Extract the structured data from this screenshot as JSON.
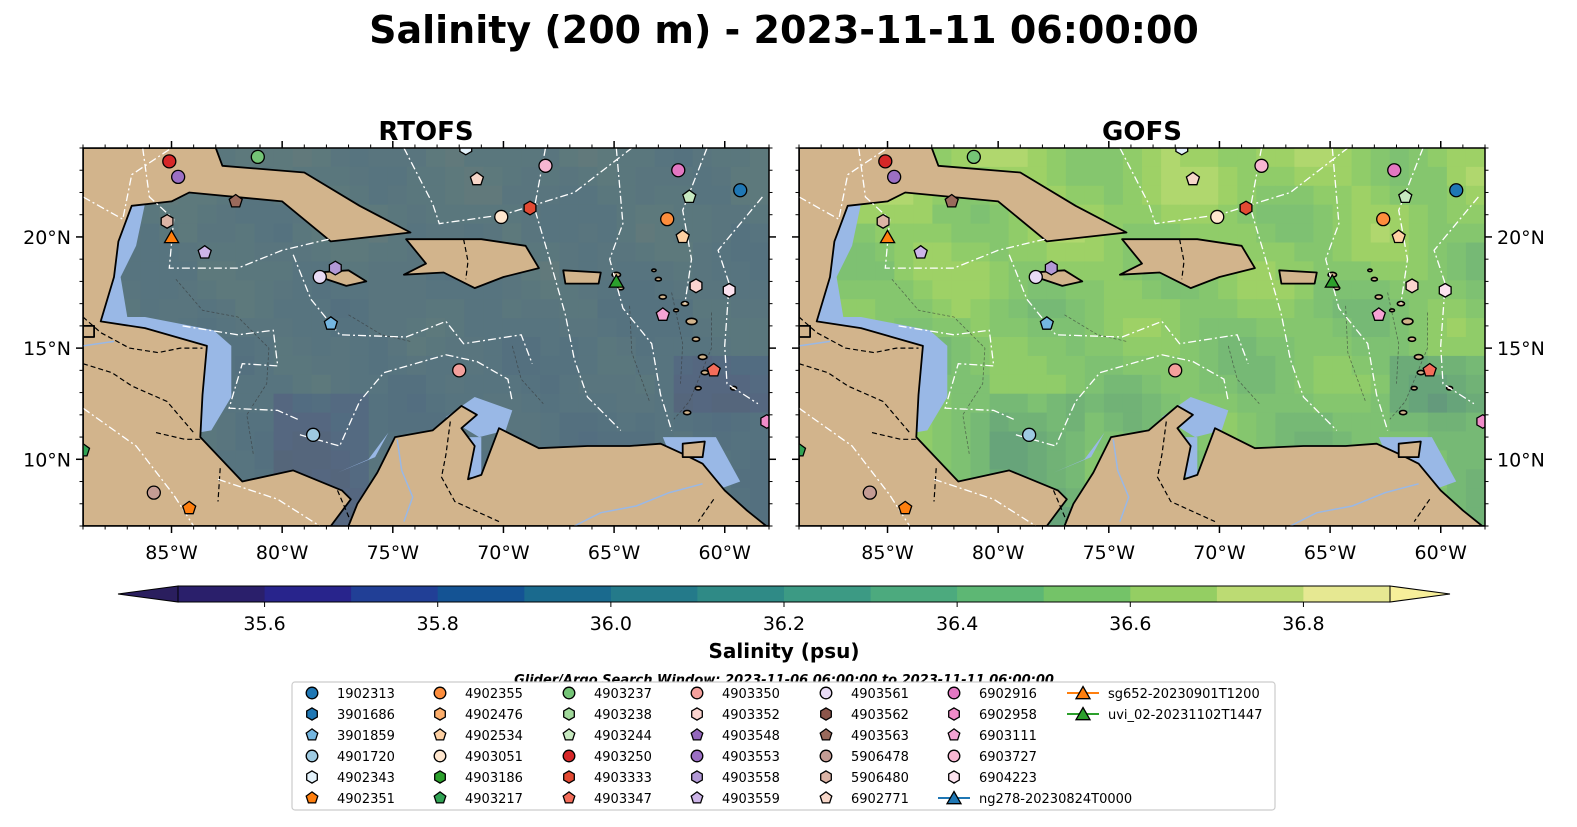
{
  "figure_title": "Salinity (200 m) - 2023-11-11 06:00:00",
  "panels": [
    {
      "title": "RTOFS",
      "ocean_style": "eddy"
    },
    {
      "title": "GOFS",
      "ocean_style": "smooth"
    }
  ],
  "colorbar": {
    "label": "Salinity (psu)",
    "min": 35.5,
    "max": 36.9,
    "step": 0.1,
    "ticks": [
      "35.6",
      "35.8",
      "36.0",
      "36.2",
      "36.4",
      "36.6",
      "36.8"
    ],
    "tick_values": [
      35.6,
      35.8,
      36.0,
      36.2,
      36.4,
      36.6,
      36.8
    ],
    "colors": [
      "#2a1f6b",
      "#28248c",
      "#213f96",
      "#145394",
      "#1a6a8e",
      "#247a8a",
      "#2f8a86",
      "#3c9a84",
      "#4caa7e",
      "#5db774",
      "#74c368",
      "#94ce63",
      "#bcdb73",
      "#e6e892"
    ],
    "under_color": "#2a1e5e",
    "over_color": "#f7ef9a"
  },
  "search_window": "Glider/Argo Search Window: 2023-11-06 06:00:00 to 2023-11-11 06:00:00",
  "colors": {
    "land": "#d2b48c",
    "shelf": "#99b8e6",
    "eddy_dark": "#1f1d6e"
  },
  "chart_data": {
    "type": "heatmap",
    "variable": "Salinity",
    "depth": "200 m",
    "units": "psu",
    "time": "2023-11-11 06:00:00",
    "xlim": [
      -89,
      -58
    ],
    "ylim": [
      7,
      24
    ],
    "xticks": [
      -85,
      -80,
      -75,
      -70,
      -65,
      -60
    ],
    "xtick_labels": [
      "85°W",
      "80°W",
      "75°W",
      "70°W",
      "65°W",
      "60°W"
    ],
    "yticks": [
      10,
      15,
      20
    ],
    "ytick_labels": [
      "10°N",
      "15°N",
      "20°N"
    ],
    "grid": false,
    "legend_position": "bottom-center",
    "legend": [
      {
        "label": "1902313",
        "marker": "circle",
        "color": "#1f77b4",
        "lon": -59.3,
        "lat": 22.1
      },
      {
        "label": "3901686",
        "marker": "hexagon",
        "color": "#1f77b4"
      },
      {
        "label": "3901859",
        "marker": "pentagon",
        "color": "#74b6e0",
        "lon": -77.8,
        "lat": 16.1
      },
      {
        "label": "4901720",
        "marker": "circle",
        "color": "#9ecae1",
        "lon": -78.6,
        "lat": 11.1
      },
      {
        "label": "4902343",
        "marker": "hexagon",
        "color": "#e3f2fb",
        "lon": -71.7,
        "lat": 24.0
      },
      {
        "label": "4902351",
        "marker": "pentagon",
        "color": "#ff7f0e",
        "lon": -84.2,
        "lat": 7.8
      },
      {
        "label": "4902355",
        "marker": "circle",
        "color": "#fd8d3c",
        "lon": -62.6,
        "lat": 20.8
      },
      {
        "label": "4902476",
        "marker": "hexagon",
        "color": "#fdae6b"
      },
      {
        "label": "4902534",
        "marker": "pentagon",
        "color": "#fdd0a2",
        "lon": -61.9,
        "lat": 20.0
      },
      {
        "label": "4903051",
        "marker": "circle",
        "color": "#fee6ce",
        "lon": -70.1,
        "lat": 20.9
      },
      {
        "label": "4903186",
        "marker": "hexagon",
        "color": "#2ca02c"
      },
      {
        "label": "4903217",
        "marker": "pentagon",
        "color": "#31a354",
        "lon": -89.0,
        "lat": 10.4
      },
      {
        "label": "4903237",
        "marker": "circle",
        "color": "#74c476",
        "lon": -81.1,
        "lat": 23.6
      },
      {
        "label": "4903238",
        "marker": "hexagon",
        "color": "#a1d99b"
      },
      {
        "label": "4903244",
        "marker": "pentagon",
        "color": "#c7e9c0",
        "lon": -61.6,
        "lat": 21.8
      },
      {
        "label": "4903250",
        "marker": "circle",
        "color": "#d62728",
        "lon": -85.1,
        "lat": 23.4
      },
      {
        "label": "4903333",
        "marker": "hexagon",
        "color": "#e34a33",
        "lon": -68.8,
        "lat": 21.3
      },
      {
        "label": "4903347",
        "marker": "pentagon",
        "color": "#f46d5a",
        "lon": -60.5,
        "lat": 14.0
      },
      {
        "label": "4903350",
        "marker": "circle",
        "color": "#f4a09c",
        "lon": -72.0,
        "lat": 14.0
      },
      {
        "label": "4903352",
        "marker": "hexagon",
        "color": "#fbd4cf",
        "lon": -61.3,
        "lat": 17.8
      },
      {
        "label": "4903548",
        "marker": "pentagon",
        "color": "#9467bd"
      },
      {
        "label": "4903553",
        "marker": "circle",
        "color": "#9b6fc4",
        "lon": -84.7,
        "lat": 22.7
      },
      {
        "label": "4903558",
        "marker": "hexagon",
        "color": "#b299d6",
        "lon": -77.6,
        "lat": 18.6
      },
      {
        "label": "4903559",
        "marker": "pentagon",
        "color": "#cdb5e8",
        "lon": -83.5,
        "lat": 19.3
      },
      {
        "label": "4903561",
        "marker": "circle",
        "color": "#e8dbf5",
        "lon": -78.3,
        "lat": 18.2
      },
      {
        "label": "4903562",
        "marker": "hexagon",
        "color": "#8c564b"
      },
      {
        "label": "4903563",
        "marker": "pentagon",
        "color": "#9a6a5c",
        "lon": -82.1,
        "lat": 21.6
      },
      {
        "label": "5906478",
        "marker": "circle",
        "color": "#c49c94",
        "lon": -85.8,
        "lat": 8.5
      },
      {
        "label": "5906480",
        "marker": "hexagon",
        "color": "#dcb4a6",
        "lon": -85.2,
        "lat": 20.7
      },
      {
        "label": "6902771",
        "marker": "pentagon",
        "color": "#f7d7c9",
        "lon": -71.2,
        "lat": 22.6
      },
      {
        "label": "6902916",
        "marker": "circle",
        "color": "#e377c2",
        "lon": -62.1,
        "lat": 23.0
      },
      {
        "label": "6902958",
        "marker": "hexagon",
        "color": "#f08cc9",
        "lon": -58.1,
        "lat": 11.7
      },
      {
        "label": "6903111",
        "marker": "pentagon",
        "color": "#f5a3d4",
        "lon": -62.8,
        "lat": 16.5
      },
      {
        "label": "6903727",
        "marker": "circle",
        "color": "#f7b6d2",
        "lon": -68.1,
        "lat": 23.2
      },
      {
        "label": "6904223",
        "marker": "hexagon",
        "color": "#fce2ef",
        "lon": -59.8,
        "lat": 17.6
      },
      {
        "label": "ng278-20230824T0000",
        "marker": "triangle-line",
        "color": "#1f77b4"
      },
      {
        "label": "sg652-20230901T1200",
        "marker": "triangle-line",
        "color": "#ff7f0e",
        "lon": -85.0,
        "lat": 20.0
      },
      {
        "label": "uvi_02-20231102T1447",
        "marker": "triangle-line",
        "color": "#2ca02c",
        "lon": -64.9,
        "lat": 18.0
      }
    ]
  }
}
